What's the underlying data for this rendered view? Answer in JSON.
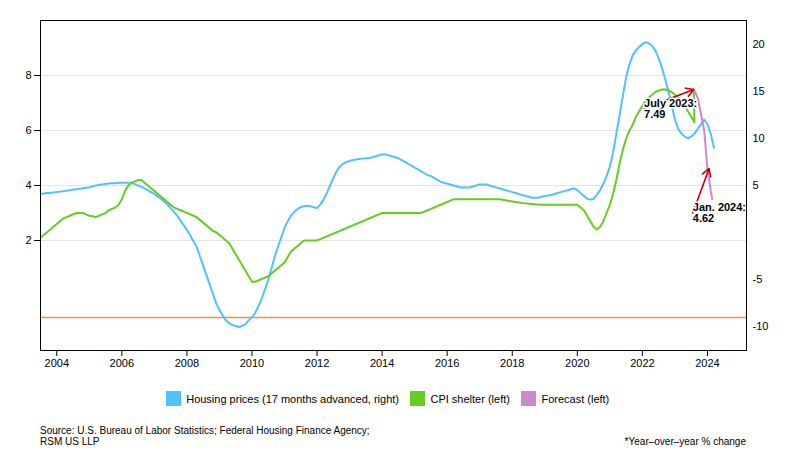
{
  "chart_data": {
    "type": "line",
    "xlim": [
      2003.5,
      2025.2
    ],
    "xticks": [
      2004,
      2006,
      2008,
      2010,
      2012,
      2014,
      2016,
      2018,
      2020,
      2022,
      2024
    ],
    "ylim": [
      -2.0,
      10.0
    ],
    "yticks": [
      2,
      4,
      6,
      8
    ],
    "y2lim": [
      -12.5,
      22.5
    ],
    "y2ticks": [
      -10,
      -5,
      5,
      10,
      15,
      20
    ],
    "grid": true,
    "legend": "bottom",
    "series": [
      {
        "name": "Housing prices (17 months advanced, right)",
        "color": "#4dc3ff",
        "axis": "y2",
        "x": [
          2003.5,
          2003.6,
          2003.7,
          2003.8,
          2003.9,
          2004.0,
          2004.1,
          2004.2,
          2004.3,
          2004.4,
          2004.5,
          2004.6,
          2004.7,
          2004.8,
          2004.9,
          2005.0,
          2005.1,
          2005.2,
          2005.3,
          2005.4,
          2005.5,
          2005.6,
          2005.7,
          2005.8,
          2005.9,
          2006.0,
          2006.1,
          2006.2,
          2006.3,
          2006.4,
          2006.5,
          2006.6,
          2006.7,
          2006.8,
          2006.9,
          2007.0,
          2007.1,
          2007.2,
          2007.3,
          2007.4,
          2007.5,
          2007.6,
          2007.7,
          2007.8,
          2007.9,
          2008.0,
          2008.1,
          2008.2,
          2008.3,
          2008.4,
          2008.5,
          2008.6,
          2008.7,
          2008.8,
          2008.9,
          2009.0,
          2009.1,
          2009.2,
          2009.3,
          2009.4,
          2009.5,
          2009.6,
          2009.7,
          2009.8,
          2009.9,
          2010.0,
          2010.1,
          2010.2,
          2010.3,
          2010.4,
          2010.5,
          2010.6,
          2010.7,
          2010.8,
          2010.9,
          2011.0,
          2011.1,
          2011.2,
          2011.3,
          2011.4,
          2011.5,
          2011.6,
          2011.7,
          2011.8,
          2011.9,
          2012.0,
          2012.1,
          2012.2,
          2012.3,
          2012.4,
          2012.5,
          2012.6,
          2012.7,
          2012.8,
          2012.9,
          2013.0,
          2013.1,
          2013.2,
          2013.3,
          2013.4,
          2013.5,
          2013.6,
          2013.7,
          2013.8,
          2013.9,
          2014.0,
          2014.1,
          2014.2,
          2014.3,
          2014.4,
          2014.5,
          2014.6,
          2014.7,
          2014.8,
          2014.9,
          2015.0,
          2015.1,
          2015.2,
          2015.3,
          2015.4,
          2015.5,
          2015.6,
          2015.7,
          2015.8,
          2015.9,
          2016.0,
          2016.1,
          2016.2,
          2016.3,
          2016.4,
          2016.5,
          2016.6,
          2016.7,
          2016.8,
          2016.9,
          2017.0,
          2017.1,
          2017.2,
          2017.3,
          2017.4,
          2017.5,
          2017.6,
          2017.7,
          2017.8,
          2017.9,
          2018.0,
          2018.1,
          2018.2,
          2018.3,
          2018.4,
          2018.5,
          2018.6,
          2018.7,
          2018.8,
          2018.9,
          2019.0,
          2019.1,
          2019.2,
          2019.3,
          2019.4,
          2019.5,
          2019.6,
          2019.7,
          2019.8,
          2019.9,
          2020.0,
          2020.1,
          2020.2,
          2020.3,
          2020.4,
          2020.5,
          2020.6,
          2020.7,
          2020.8,
          2020.9,
          2021.0,
          2021.1,
          2021.2,
          2021.3,
          2021.4,
          2021.5,
          2021.6,
          2021.7,
          2021.8,
          2021.9,
          2022.0,
          2022.1,
          2022.2,
          2022.3,
          2022.4,
          2022.5,
          2022.6,
          2022.7,
          2022.8,
          2022.9,
          2023.0,
          2023.1,
          2023.2,
          2023.3,
          2023.4,
          2023.5,
          2023.6,
          2023.7,
          2023.8,
          2023.9,
          2024.0,
          2024.1,
          2024.2
        ],
        "values": [
          4.1,
          4.15,
          4.2,
          4.2,
          4.25,
          4.3,
          4.35,
          4.4,
          4.45,
          4.5,
          4.55,
          4.6,
          4.65,
          4.7,
          4.75,
          4.8,
          4.9,
          5.0,
          5.05,
          5.1,
          5.15,
          5.2,
          5.25,
          5.25,
          5.28,
          5.3,
          5.32,
          5.3,
          5.25,
          5.15,
          5.0,
          4.85,
          4.7,
          4.5,
          4.3,
          4.1,
          3.85,
          3.6,
          3.3,
          3.0,
          2.6,
          2.2,
          1.8,
          1.3,
          0.8,
          0.3,
          -0.3,
          -0.9,
          -1.5,
          -2.5,
          -3.5,
          -4.5,
          -5.5,
          -6.5,
          -7.5,
          -8.2,
          -8.8,
          -9.3,
          -9.6,
          -9.8,
          -9.9,
          -10.0,
          -9.9,
          -9.7,
          -9.3,
          -9.0,
          -8.5,
          -7.8,
          -7.0,
          -6.0,
          -5.0,
          -3.8,
          -2.5,
          -1.5,
          -0.5,
          0.5,
          1.2,
          1.8,
          2.2,
          2.5,
          2.7,
          2.8,
          2.85,
          2.8,
          2.7,
          2.6,
          3.0,
          3.5,
          4.2,
          5.0,
          5.8,
          6.5,
          7.0,
          7.3,
          7.5,
          7.6,
          7.7,
          7.75,
          7.8,
          7.85,
          7.9,
          7.9,
          8.0,
          8.1,
          8.2,
          8.3,
          8.3,
          8.2,
          8.1,
          8.0,
          7.9,
          7.7,
          7.5,
          7.3,
          7.1,
          6.9,
          6.7,
          6.5,
          6.3,
          6.1,
          6.0,
          5.8,
          5.6,
          5.4,
          5.3,
          5.2,
          5.1,
          5.0,
          4.9,
          4.8,
          4.8,
          4.8,
          4.8,
          4.9,
          5.0,
          5.1,
          5.1,
          5.1,
          5.0,
          4.9,
          4.8,
          4.7,
          4.6,
          4.5,
          4.4,
          4.3,
          4.2,
          4.1,
          4.0,
          3.9,
          3.8,
          3.7,
          3.7,
          3.7,
          3.8,
          3.9,
          3.95,
          4.0,
          4.1,
          4.2,
          4.3,
          4.4,
          4.5,
          4.6,
          4.7,
          4.5,
          4.2,
          3.9,
          3.6,
          3.5,
          3.6,
          4.0,
          4.5,
          5.2,
          6.0,
          7.0,
          8.5,
          10.5,
          12.5,
          14.5,
          16.5,
          17.8,
          18.8,
          19.3,
          19.7,
          20.0,
          20.2,
          20.1,
          19.8,
          19.3,
          18.5,
          17.5,
          16.3,
          15.0,
          13.5,
          12.0,
          11.0,
          10.5,
          10.2,
          10.0,
          10.2,
          10.5,
          11.0,
          11.5,
          12.0,
          11.5,
          10.5,
          9.0
        ]
      },
      {
        "name": "CPI shelter (left)",
        "color": "#66cc22",
        "x": [
          2003.5,
          2003.6,
          2003.7,
          2003.8,
          2003.9,
          2004.0,
          2004.1,
          2004.2,
          2004.3,
          2004.4,
          2004.5,
          2004.6,
          2004.7,
          2004.8,
          2004.9,
          2005.0,
          2005.1,
          2005.2,
          2005.3,
          2005.4,
          2005.5,
          2005.6,
          2005.7,
          2005.8,
          2005.9,
          2006.0,
          2006.1,
          2006.2,
          2006.3,
          2006.4,
          2006.5,
          2006.6,
          2006.7,
          2006.8,
          2006.9,
          2007.0,
          2007.1,
          2007.2,
          2007.3,
          2007.4,
          2007.5,
          2007.6,
          2007.7,
          2007.8,
          2007.9,
          2008.0,
          2008.1,
          2008.2,
          2008.3,
          2008.4,
          2008.5,
          2008.6,
          2008.7,
          2008.8,
          2008.9,
          2009.0,
          2009.1,
          2009.2,
          2009.3,
          2009.4,
          2009.5,
          2009.6,
          2009.7,
          2009.8,
          2009.9,
          2010.0,
          2010.1,
          2010.2,
          2010.3,
          2010.4,
          2010.5,
          2010.6,
          2010.7,
          2010.8,
          2010.9,
          2011.0,
          2011.1,
          2011.2,
          2011.3,
          2011.4,
          2011.5,
          2011.6,
          2011.7,
          2011.8,
          2011.9,
          2012.0,
          2012.1,
          2012.2,
          2012.3,
          2012.4,
          2012.5,
          2012.6,
          2012.7,
          2012.8,
          2012.9,
          2013.0,
          2013.1,
          2013.2,
          2013.3,
          2013.4,
          2013.5,
          2013.6,
          2013.7,
          2013.8,
          2013.9,
          2014.0,
          2014.1,
          2014.2,
          2014.3,
          2014.4,
          2014.5,
          2014.6,
          2014.7,
          2014.8,
          2014.9,
          2015.0,
          2015.1,
          2015.2,
          2015.3,
          2015.4,
          2015.5,
          2015.6,
          2015.7,
          2015.8,
          2015.9,
          2016.0,
          2016.1,
          2016.2,
          2016.3,
          2016.4,
          2016.5,
          2016.6,
          2016.7,
          2016.8,
          2016.9,
          2017.0,
          2017.1,
          2017.2,
          2017.3,
          2017.4,
          2017.5,
          2017.6,
          2017.7,
          2017.8,
          2017.9,
          2018.0,
          2018.1,
          2018.2,
          2018.3,
          2018.4,
          2018.5,
          2018.6,
          2018.7,
          2018.8,
          2018.9,
          2019.0,
          2019.1,
          2019.2,
          2019.3,
          2019.4,
          2019.5,
          2019.6,
          2019.7,
          2019.8,
          2019.9,
          2020.0,
          2020.1,
          2020.2,
          2020.3,
          2020.4,
          2020.5,
          2020.6,
          2020.7,
          2020.8,
          2020.9,
          2021.0,
          2021.1,
          2021.2,
          2021.3,
          2021.4,
          2021.5,
          2021.6,
          2021.7,
          2021.8,
          2021.9,
          2022.0,
          2022.1,
          2022.2,
          2022.3,
          2022.4,
          2022.5,
          2022.6,
          2022.7,
          2022.8,
          2022.9,
          2023.0,
          2023.1,
          2023.2,
          2023.3,
          2023.4,
          2023.5,
          2023.6,
          2023.58
        ],
        "values": [
          2.1,
          2.2,
          2.3,
          2.4,
          2.5,
          2.6,
          2.7,
          2.8,
          2.85,
          2.9,
          2.95,
          3.0,
          3.0,
          3.0,
          2.95,
          2.9,
          2.88,
          2.85,
          2.9,
          2.95,
          3.0,
          3.1,
          3.15,
          3.2,
          3.3,
          3.5,
          3.8,
          4.0,
          4.1,
          4.15,
          4.2,
          4.2,
          4.1,
          4.0,
          3.9,
          3.8,
          3.7,
          3.6,
          3.5,
          3.4,
          3.3,
          3.2,
          3.15,
          3.1,
          3.05,
          3.0,
          2.95,
          2.9,
          2.85,
          2.75,
          2.65,
          2.55,
          2.45,
          2.35,
          2.3,
          2.2,
          2.1,
          2.0,
          1.9,
          1.7,
          1.5,
          1.3,
          1.1,
          0.9,
          0.7,
          0.5,
          0.5,
          0.55,
          0.6,
          0.65,
          0.7,
          0.8,
          0.9,
          1.0,
          1.1,
          1.2,
          1.4,
          1.6,
          1.7,
          1.8,
          1.9,
          2.0,
          2.0,
          2.0,
          2.0,
          2.0,
          2.05,
          2.1,
          2.15,
          2.2,
          2.25,
          2.3,
          2.35,
          2.4,
          2.45,
          2.5,
          2.55,
          2.6,
          2.65,
          2.7,
          2.75,
          2.8,
          2.85,
          2.9,
          2.95,
          3.0,
          3.0,
          3.0,
          3.0,
          3.0,
          3.0,
          3.0,
          3.0,
          3.0,
          3.0,
          3.0,
          3.0,
          3.0,
          3.05,
          3.1,
          3.15,
          3.2,
          3.25,
          3.3,
          3.35,
          3.4,
          3.45,
          3.5,
          3.5,
          3.5,
          3.5,
          3.5,
          3.5,
          3.5,
          3.5,
          3.5,
          3.5,
          3.5,
          3.5,
          3.5,
          3.5,
          3.5,
          3.48,
          3.46,
          3.44,
          3.42,
          3.4,
          3.38,
          3.36,
          3.35,
          3.34,
          3.33,
          3.32,
          3.31,
          3.3,
          3.3,
          3.3,
          3.3,
          3.3,
          3.3,
          3.3,
          3.3,
          3.3,
          3.3,
          3.3,
          3.3,
          3.2,
          3.1,
          2.9,
          2.7,
          2.5,
          2.4,
          2.5,
          2.7,
          3.0,
          3.3,
          3.7,
          4.2,
          4.8,
          5.3,
          5.7,
          6.0,
          6.2,
          6.5,
          6.7,
          6.9,
          7.1,
          7.2,
          7.3,
          7.4,
          7.45,
          7.49,
          7.49,
          7.45,
          7.4,
          7.3,
          7.2,
          7.1,
          6.9,
          6.7,
          6.5,
          6.3,
          7.49
        ]
      },
      {
        "name": "Forecast (left)",
        "color": "#cc88cc",
        "x": [
          2023.58,
          2023.7,
          2023.9,
          2024.0,
          2024.1,
          2024.15
        ],
        "values": [
          7.49,
          7.2,
          6.0,
          4.62,
          3.8,
          3.5
        ]
      }
    ],
    "hlines": [
      {
        "y": -0.8,
        "color": "#ff8844"
      }
    ],
    "annotations": [
      {
        "text": "July 2023:\n7.49",
        "xy": [
          2023.58,
          7.49
        ],
        "xytext": [
          2022.05,
          6.8
        ],
        "arrow_color": "#cc0000"
      },
      {
        "text": "Jan. 2024:\n4.62",
        "xy": [
          2024.05,
          4.62
        ],
        "xytext": [
          2023.55,
          3.0
        ],
        "arrow_color": "#cc0000"
      }
    ],
    "source": "Source: U.S. Bureau of Labor Statistics; Federal Housing Finance Agency;\nRSM US LLP",
    "note": "*Year–over–year % change"
  }
}
